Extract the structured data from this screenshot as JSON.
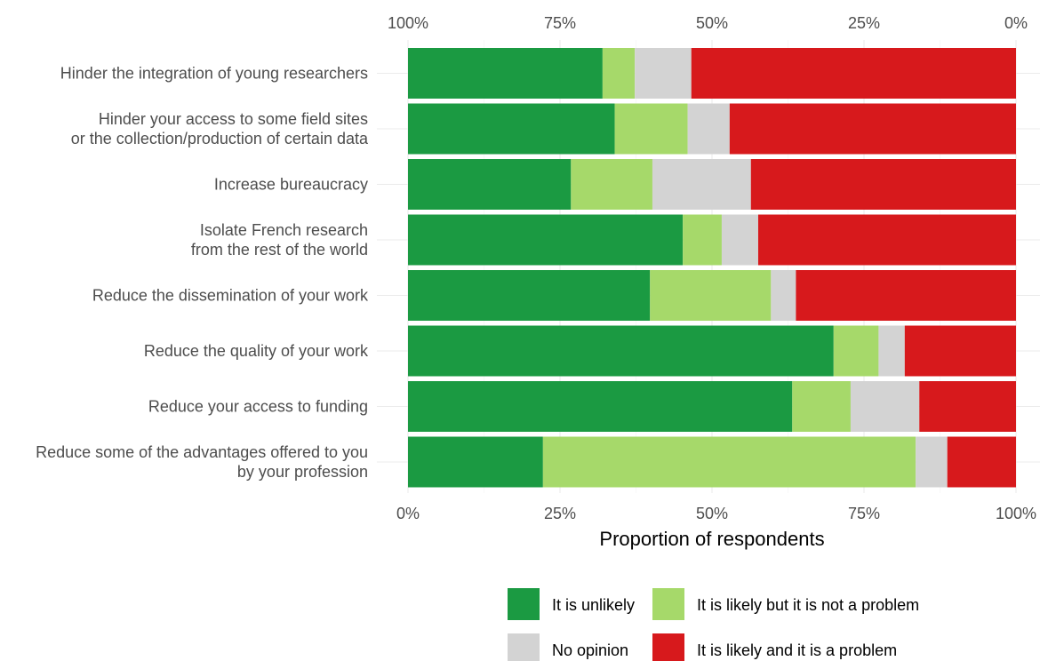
{
  "chart_data": {
    "type": "bar",
    "orientation": "horizontal",
    "stacked": true,
    "normalized": true,
    "title": "",
    "xlabel": "Proportion of respondents",
    "ylabel": "",
    "xlim": [
      0,
      100
    ],
    "bottom_ticks": [
      "0%",
      "25%",
      "50%",
      "75%",
      "100%"
    ],
    "top_ticks": [
      "100%",
      "75%",
      "50%",
      "25%",
      "0%"
    ],
    "grid": true,
    "legend_position": "bottom",
    "categories": [
      [
        "Hinder the integration of young researchers"
      ],
      [
        "Hinder your access to some field sites",
        "or the collection/production of certain data"
      ],
      [
        "Increase bureaucracy"
      ],
      [
        "Isolate French research",
        "from the rest of the world"
      ],
      [
        "Reduce the dissemination of your work"
      ],
      [
        "Reduce the quality of your work"
      ],
      [
        "Reduce your access to funding"
      ],
      [
        "Reduce some of the advantages offered to you",
        "by your profession"
      ]
    ],
    "series": [
      {
        "name": "It is unlikely",
        "color": "#1b9a42",
        "values": [
          32,
          34,
          26.8,
          45.2,
          39.8,
          70,
          63.2,
          22.2
        ]
      },
      {
        "name": "It is likely but it is not a problem",
        "color": "#a6d96a",
        "values": [
          5.3,
          12,
          13.4,
          6.4,
          19.9,
          7.4,
          9.6,
          61.3
        ]
      },
      {
        "name": "No opinion",
        "color": "#d3d3d3",
        "values": [
          9.3,
          6.9,
          16.2,
          6,
          4.1,
          4.3,
          11.3,
          5.2
        ]
      },
      {
        "name": "It is likely and it is a problem",
        "color": "#d7191c",
        "values": [
          53.4,
          47.1,
          43.6,
          42.4,
          36.2,
          18.3,
          15.9,
          11.3
        ]
      }
    ]
  }
}
